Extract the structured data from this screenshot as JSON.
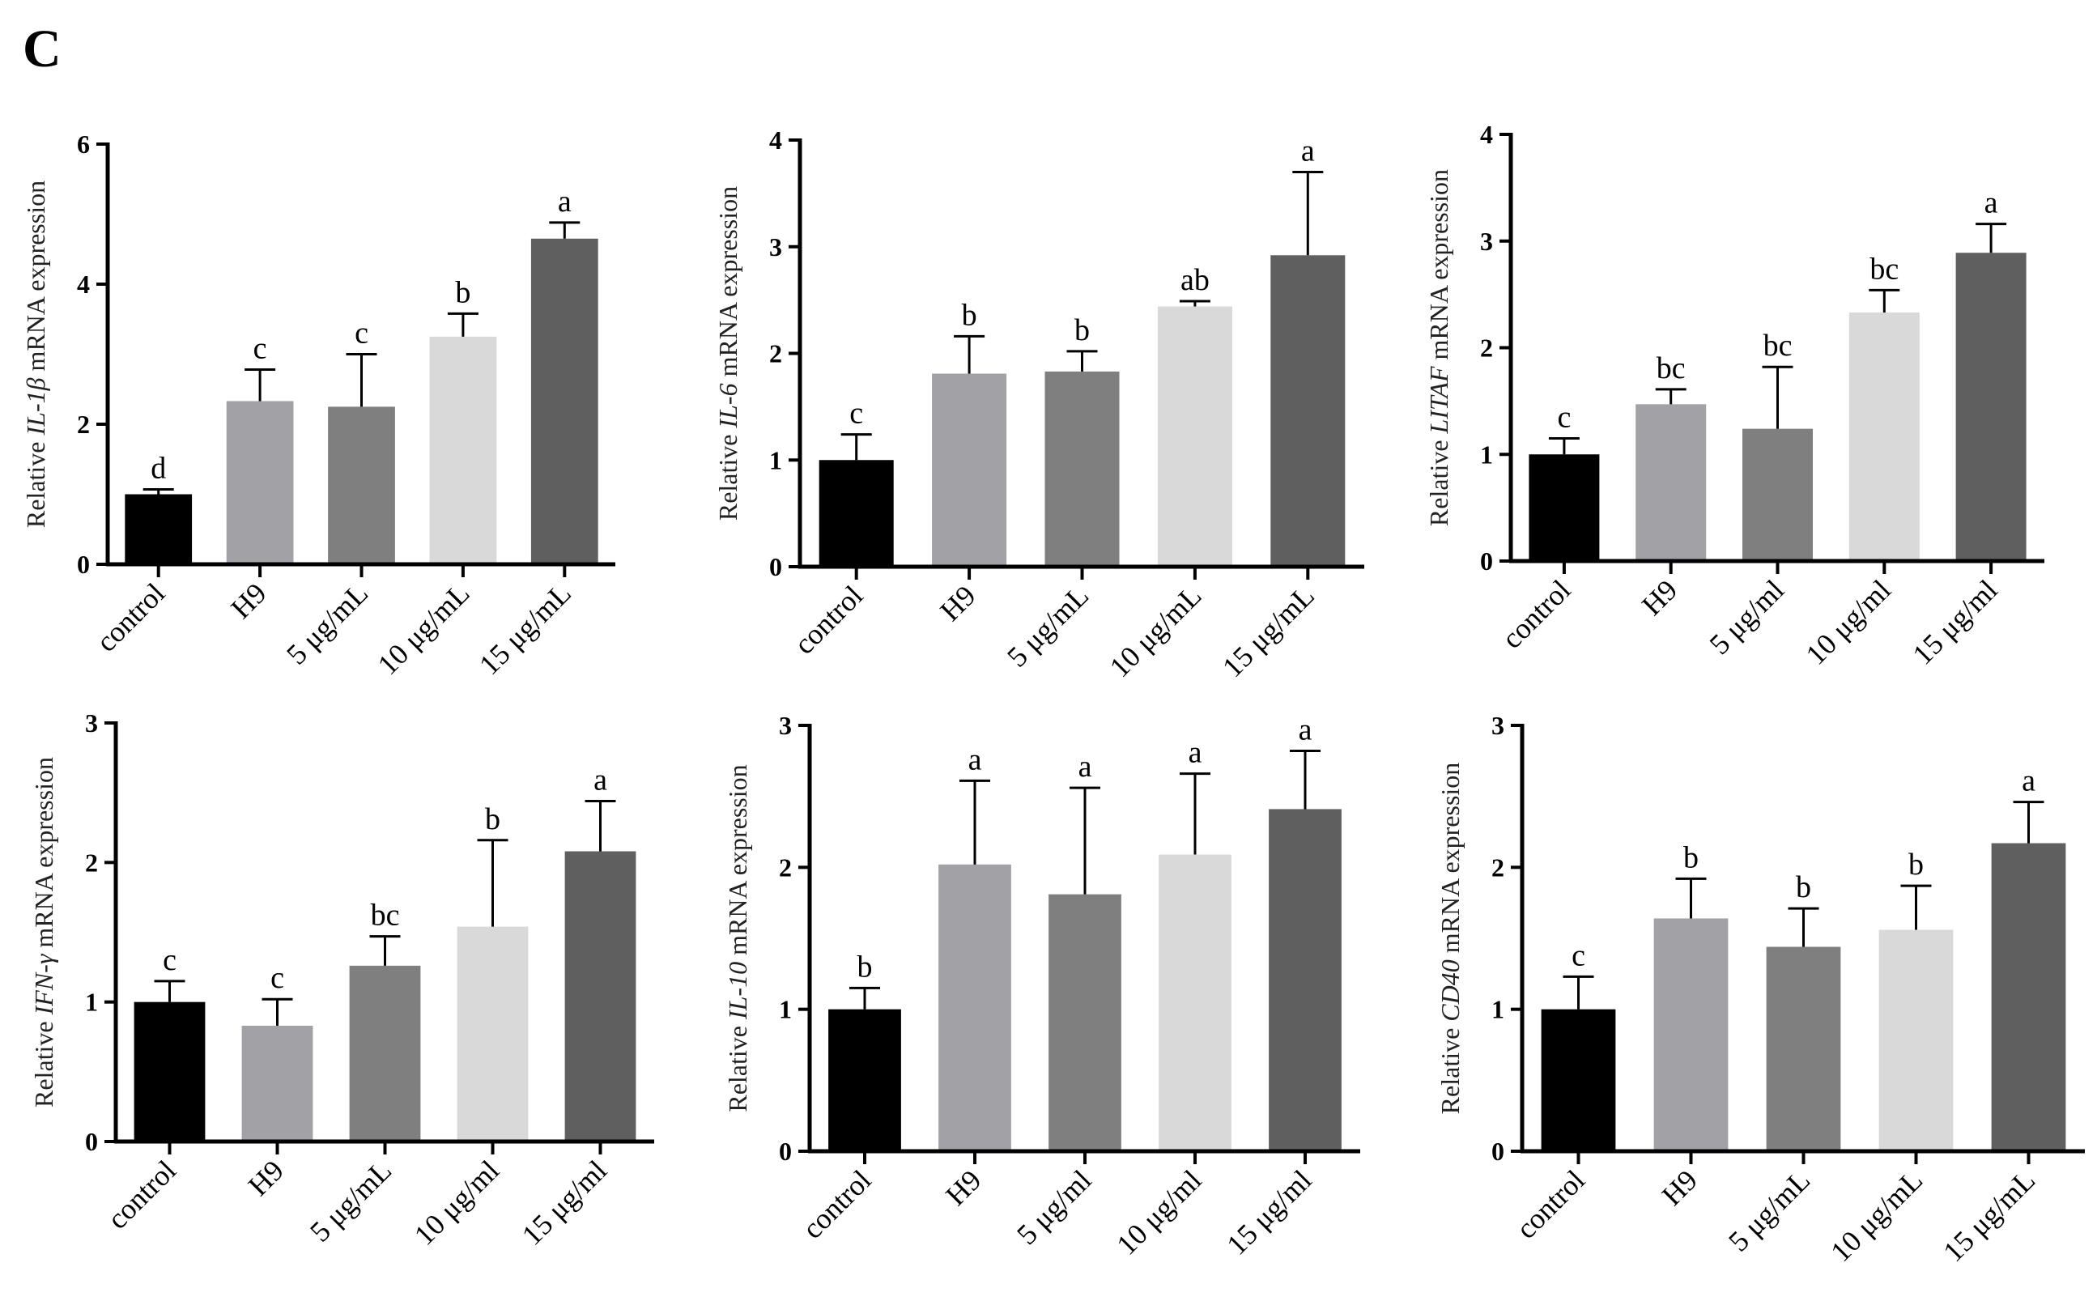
{
  "figure": {
    "panel_label": "C"
  },
  "colors": [
    "#000000",
    "#A2A2A6",
    "#7F7F7F",
    "#D9D9D9",
    "#5F5F5F"
  ],
  "chart_data": [
    {
      "type": "bar",
      "categories": [
        "control",
        "H9",
        "5 μg/mL",
        "10 μg/mL",
        "15 μg/mL"
      ],
      "values": [
        1.0,
        2.33,
        2.25,
        3.25,
        4.65
      ],
      "errors": [
        0.07,
        0.45,
        0.75,
        0.33,
        0.23
      ],
      "sig_letters": [
        "d",
        "c",
        "c",
        "b",
        "a"
      ],
      "ylabel_pre": "Relative ",
      "ylabel_gene": "IL-1β",
      "ylabel_post": " mRNA expression",
      "ylim": [
        0,
        6
      ],
      "yticks": [
        "0",
        "2",
        "4",
        "6"
      ]
    },
    {
      "type": "bar",
      "categories": [
        "control",
        "H9",
        "5 μg/mL",
        "10 μg/mL",
        "15 μg/mL"
      ],
      "values": [
        1.0,
        1.81,
        1.83,
        2.44,
        2.92
      ],
      "errors": [
        0.24,
        0.35,
        0.19,
        0.05,
        0.78
      ],
      "sig_letters": [
        "c",
        "b",
        "b",
        "ab",
        "a"
      ],
      "ylabel_pre": "Relative ",
      "ylabel_gene": "IL-6",
      "ylabel_post": " mRNA expression",
      "ylim": [
        0,
        4
      ],
      "yticks": [
        "0",
        "1",
        "2",
        "3",
        "4"
      ]
    },
    {
      "type": "bar",
      "categories": [
        "control",
        "H9",
        "5 μg/ml",
        "10 μg/ml",
        "15 μg/ml"
      ],
      "values": [
        1.0,
        1.47,
        1.24,
        2.33,
        2.89
      ],
      "errors": [
        0.15,
        0.14,
        0.58,
        0.21,
        0.27
      ],
      "sig_letters": [
        "c",
        "bc",
        "bc",
        "bc",
        "a"
      ],
      "ylabel_pre": "Relative ",
      "ylabel_gene": "LITAF",
      "ylabel_post": " mRNA expression",
      "ylim": [
        0,
        4
      ],
      "yticks": [
        "0",
        "1",
        "2",
        "3",
        "4"
      ]
    },
    {
      "type": "bar",
      "categories": [
        "control",
        "H9",
        "5 μg/mL",
        "10 μg/ml",
        "15 μg/ml"
      ],
      "values": [
        1.0,
        0.83,
        1.26,
        1.54,
        2.08
      ],
      "errors": [
        0.15,
        0.19,
        0.21,
        0.62,
        0.36
      ],
      "sig_letters": [
        "c",
        "c",
        "bc",
        "b",
        "a"
      ],
      "ylabel_pre": "Relative ",
      "ylabel_gene": "IFN-γ",
      "ylabel_post": " mRNA expression",
      "ylim": [
        0,
        3
      ],
      "yticks": [
        "0",
        "1",
        "2",
        "3"
      ]
    },
    {
      "type": "bar",
      "categories": [
        "control",
        "H9",
        "5 μg/ml",
        "10 μg/ml",
        "15 μg/ml"
      ],
      "values": [
        1.0,
        2.02,
        1.81,
        2.09,
        2.41
      ],
      "errors": [
        0.15,
        0.59,
        0.75,
        0.57,
        0.41
      ],
      "sig_letters": [
        "b",
        "a",
        "a",
        "a",
        "a"
      ],
      "ylabel_pre": "Relative ",
      "ylabel_gene": "IL-10",
      "ylabel_post": " mRNA expression",
      "ylim": [
        0,
        3
      ],
      "yticks": [
        "0",
        "1",
        "2",
        "3"
      ]
    },
    {
      "type": "bar",
      "categories": [
        "control",
        "H9",
        "5 μg/mL",
        "10 μg/mL",
        "15 μg/mL"
      ],
      "values": [
        1.0,
        1.64,
        1.44,
        1.56,
        2.17
      ],
      "errors": [
        0.23,
        0.28,
        0.27,
        0.31,
        0.29
      ],
      "sig_letters": [
        "c",
        "b",
        "b",
        "b",
        "a"
      ],
      "ylabel_pre": "Relative ",
      "ylabel_gene": "CD40",
      "ylabel_post": " mRNA expression",
      "ylim": [
        0,
        3
      ],
      "yticks": [
        "0",
        "1",
        "2",
        "3"
      ]
    }
  ]
}
